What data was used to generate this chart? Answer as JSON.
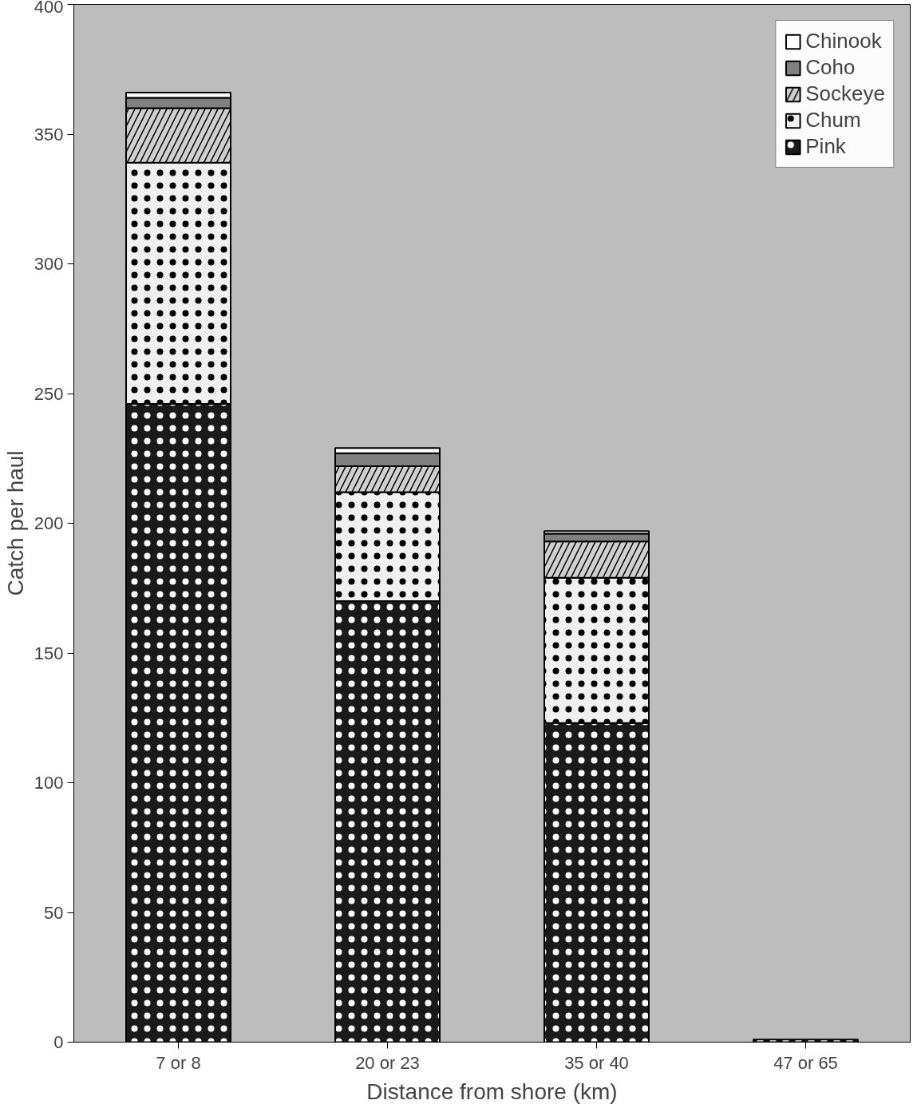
{
  "chart_data": {
    "type": "bar",
    "stacked": true,
    "xlabel": "Distance from shore (km)",
    "ylabel": "Catch per haul",
    "categories": [
      "7 or 8",
      "20 or 23",
      "35 or 40",
      "47 or 65"
    ],
    "series": [
      {
        "name": "Pink",
        "color": "#1a1a1a",
        "values": [
          246,
          170,
          123,
          1
        ]
      },
      {
        "name": "Chum",
        "color": "#f0f0f0",
        "values": [
          93,
          42,
          56,
          0
        ]
      },
      {
        "name": "Sockeye",
        "color": "#d0d0d0",
        "values": [
          21,
          10,
          14,
          0
        ]
      },
      {
        "name": "Coho",
        "color": "#808080",
        "values": [
          4,
          5,
          3,
          0
        ]
      },
      {
        "name": "Chinook",
        "color": "#ffffff",
        "values": [
          2,
          2,
          1,
          0
        ]
      }
    ],
    "ylim": [
      0,
      400
    ],
    "yticks": [
      0,
      50,
      100,
      150,
      200,
      250,
      300,
      350,
      400
    ],
    "grid": false,
    "legend": "top right"
  }
}
